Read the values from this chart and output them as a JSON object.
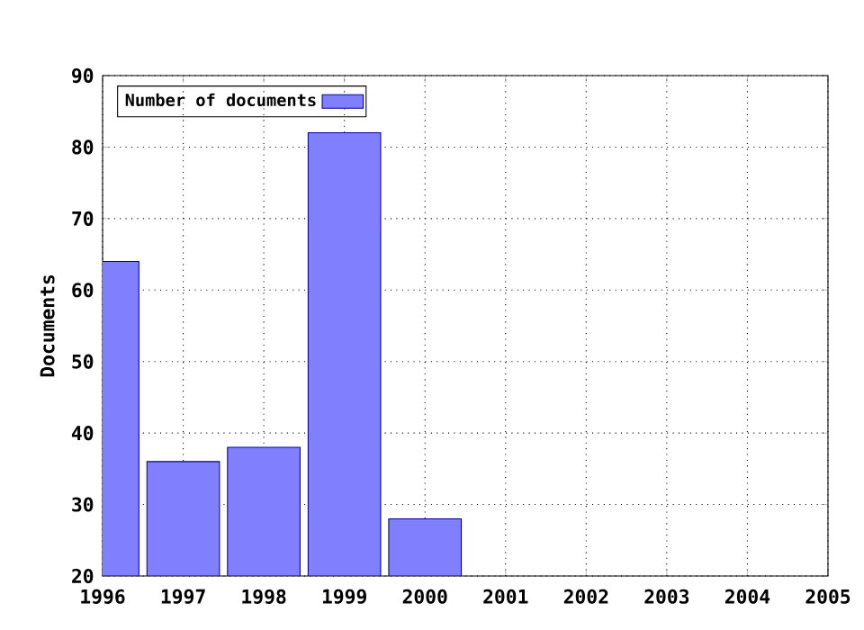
{
  "chart_data": {
    "type": "bar",
    "ylabel": "Documents",
    "x": [
      1996,
      1997,
      1998,
      1999,
      2000
    ],
    "series": [
      {
        "name": "Number of documents",
        "color": "#8080ff",
        "values": [
          64,
          36,
          38,
          82,
          28
        ]
      }
    ],
    "xlim": [
      1996,
      2005
    ],
    "xticks": [
      1996,
      1997,
      1998,
      1999,
      2000,
      2001,
      2002,
      2003,
      2004,
      2005
    ],
    "ylim": [
      20,
      90
    ],
    "yticks": [
      20,
      30,
      40,
      50,
      60,
      70,
      80,
      90
    ],
    "grid": true,
    "legend": "top left"
  }
}
